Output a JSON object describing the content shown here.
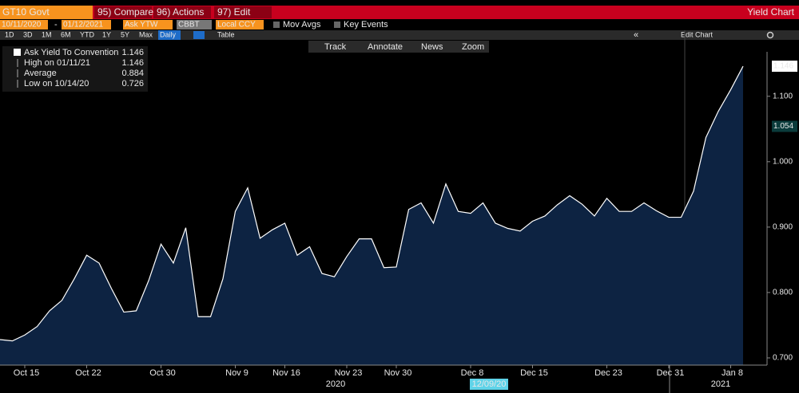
{
  "toolbar": {
    "ticker": "GT10 Govt",
    "buttons": [
      "95) Compare",
      "96) Actions",
      "97) Edit"
    ],
    "title": "Yield Chart"
  },
  "settings": {
    "start": "10/11/2020",
    "end": "01/12/2021",
    "field": "Ask YTW",
    "source": "CBBT",
    "currency": "Local CCY",
    "options": [
      "Mov Avgs",
      "Key Events"
    ]
  },
  "periods": [
    "1D",
    "3D",
    "1M",
    "6M",
    "YTD",
    "1Y",
    "5Y",
    "Max",
    "Daily"
  ],
  "active_period": "Daily",
  "table": "Table",
  "edit_chart": "Edit Chart",
  "tools": [
    "Track",
    "Annotate",
    "News",
    "Zoom"
  ],
  "chart_data": {
    "type": "area",
    "legend": [
      {
        "label": "Ask Yield To Convention",
        "value": 1.146
      },
      {
        "label": "High on 01/11/21",
        "value": 1.146
      },
      {
        "label": "Average",
        "value": 0.884
      },
      {
        "label": "Low on 10/14/20",
        "value": 0.726
      }
    ],
    "categories": [
      null,
      null,
      "Oct 15",
      null,
      null,
      null,
      null,
      "Oct 22",
      null,
      null,
      null,
      null,
      null,
      "Oct 30",
      null,
      null,
      null,
      null,
      null,
      "Nov 9",
      null,
      null,
      null,
      "Nov 16",
      null,
      null,
      null,
      null,
      "Nov 23",
      null,
      null,
      null,
      "Nov 30",
      null,
      null,
      null,
      null,
      null,
      "Dec 8",
      null,
      null,
      null,
      null,
      "Dec 15",
      null,
      null,
      null,
      null,
      null,
      "Dec 23",
      null,
      null,
      null,
      null,
      "Dec 31",
      null,
      null,
      null,
      null,
      "Jan 8",
      null
    ],
    "values": [
      0.728,
      0.726,
      0.735,
      0.748,
      0.772,
      0.788,
      0.821,
      0.857,
      0.845,
      0.806,
      0.77,
      0.772,
      0.818,
      0.874,
      0.845,
      0.899,
      0.763,
      0.763,
      0.821,
      0.924,
      0.96,
      0.883,
      0.896,
      0.906,
      0.857,
      0.87,
      0.829,
      0.824,
      0.855,
      0.882,
      0.882,
      0.838,
      0.839,
      0.927,
      0.937,
      0.906,
      0.966,
      0.924,
      0.921,
      0.937,
      0.906,
      0.898,
      0.894,
      0.909,
      0.917,
      0.934,
      0.948,
      0.935,
      0.917,
      0.944,
      0.924,
      0.924,
      0.937,
      0.925,
      0.915,
      0.915,
      0.955,
      1.037,
      1.077,
      1.11,
      1.146
    ],
    "color": "#ffffff",
    "fill": "#0d2342",
    "ylim": [
      0.689,
      1.168
    ],
    "yticks": [
      {
        "value": 0.7,
        "label": "0.700"
      },
      {
        "value": 0.8,
        "label": "0.800"
      },
      {
        "value": 0.9,
        "label": "0.900"
      },
      {
        "value": 1.0,
        "label": "1.000"
      },
      {
        "value": 1.1,
        "label": "1.100"
      }
    ],
    "annotations": [
      {
        "value": 1.146,
        "label": "1.146"
      },
      {
        "value": 1.054,
        "label": "1.054"
      }
    ],
    "year_labels": [
      "2020",
      "2021"
    ],
    "cursor_label": "12/09/20",
    "grid": false
  }
}
